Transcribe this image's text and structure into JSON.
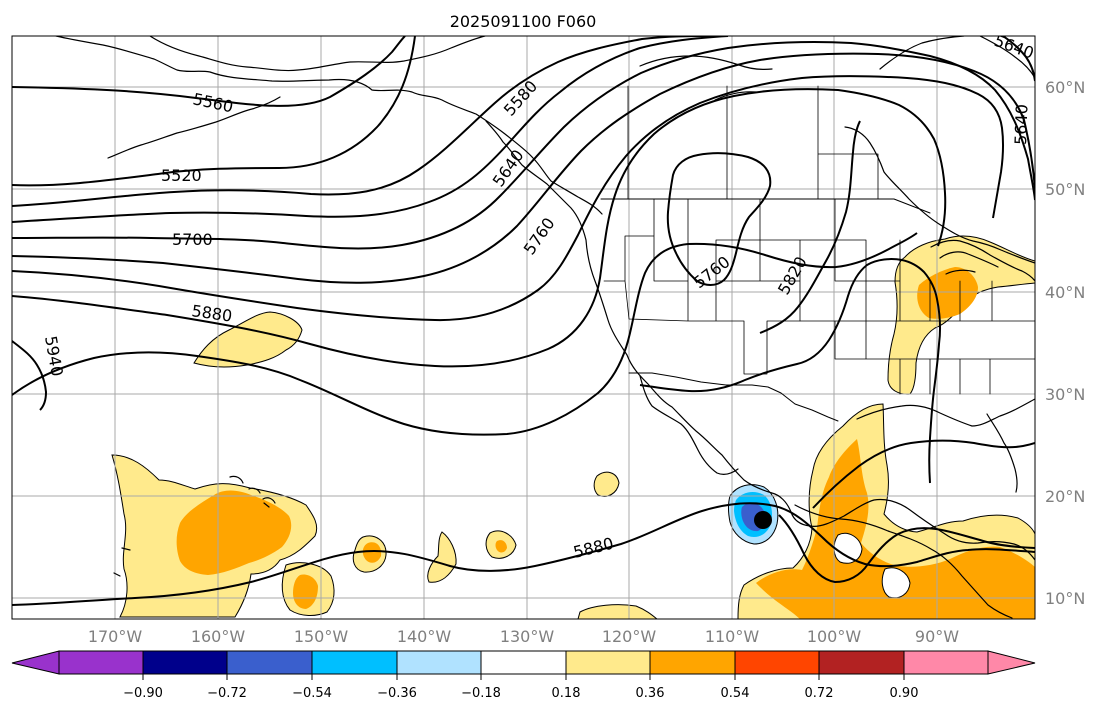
{
  "title": "2025091100 F060",
  "axes": {
    "longitude_labels": [
      "170°W",
      "160°W",
      "150°W",
      "140°W",
      "130°W",
      "120°W",
      "110°W",
      "100°W",
      "90°W"
    ],
    "latitude_labels": [
      "60°N",
      "50°N",
      "40°N",
      "30°N",
      "20°N",
      "10°N"
    ]
  },
  "contour_labels": [
    "5560",
    "5520",
    "5700",
    "5880",
    "5940",
    "5580",
    "5640",
    "5760",
    "5760",
    "5820",
    "5640",
    "5640",
    "5880"
  ],
  "colorbar": {
    "ticks": [
      "−0.90",
      "−0.72",
      "−0.54",
      "−0.36",
      "−0.18",
      "0.18",
      "0.36",
      "0.54",
      "0.72",
      "0.90"
    ],
    "colors": [
      "#9932cc",
      "#00008b",
      "#3a5fcd",
      "#00bfff",
      "#b0e2ff",
      "#ffffff",
      "#ffea8c",
      "#ffa500",
      "#ff4500",
      "#b22222",
      "#ff88a8"
    ]
  },
  "colors": {
    "land_line": "#000000",
    "grid": "#a9a9a9",
    "light_yellow": "#ffea8c",
    "orange": "#ffa500",
    "light_blue": "#b0e2ff",
    "medium_blue": "#00bfff",
    "dark_blue": "#3a5fcd"
  }
}
